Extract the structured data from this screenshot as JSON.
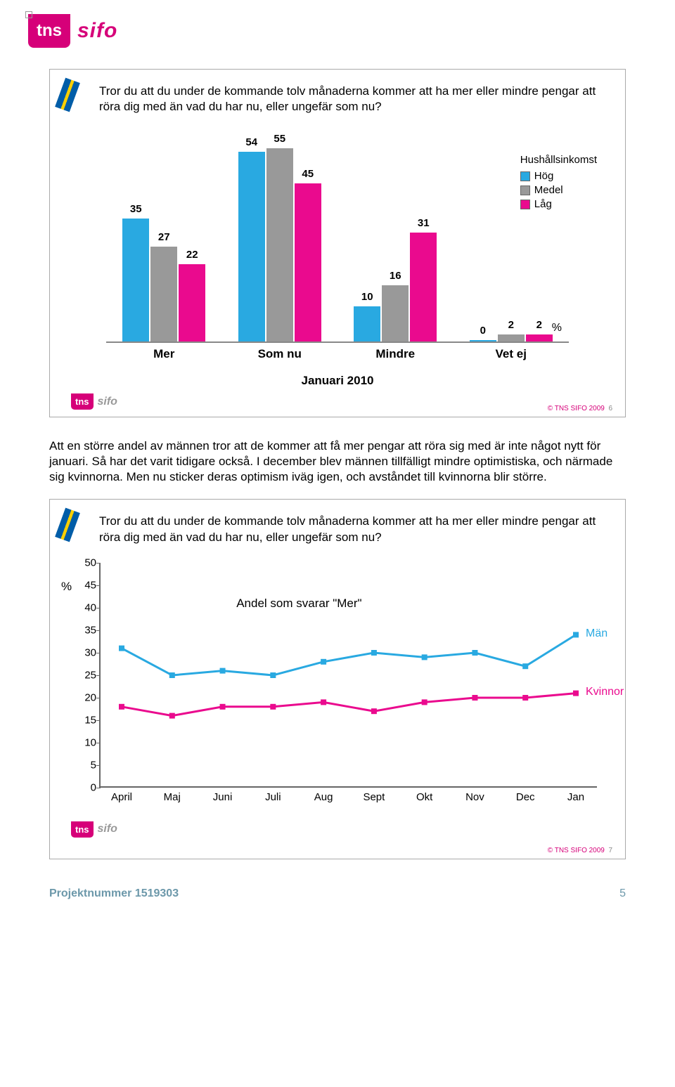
{
  "logo": {
    "tns": "tns",
    "sifo": "sifo"
  },
  "slide1": {
    "question": "Tror du att du under de kommande tolv månaderna kommer att ha mer eller mindre pengar att röra dig med än vad du har nu, eller ungefär som nu?",
    "legend_title": "Hushållsinkomst",
    "legend_items": [
      {
        "label": "Hög",
        "color": "#29a9e1"
      },
      {
        "label": "Medel",
        "color": "#999999"
      },
      {
        "label": "Låg",
        "color": "#ea0a8e"
      }
    ],
    "colors": {
      "hog": "#29a9e1",
      "medel": "#999999",
      "lag": "#ea0a8e"
    },
    "ymax": 60,
    "groups": [
      {
        "label": "Mer",
        "values": [
          35,
          27,
          22
        ]
      },
      {
        "label": "Som nu",
        "values": [
          54,
          55,
          45
        ]
      },
      {
        "label": "Mindre",
        "values": [
          10,
          16,
          31
        ]
      },
      {
        "label": "Vet ej",
        "values": [
          0,
          2,
          2
        ]
      }
    ],
    "unit": "%",
    "subtitle": "Januari 2010",
    "copyright": "© TNS SIFO 2009",
    "slide_num": "6"
  },
  "paragraph": "Att en större andel av männen tror att de kommer att få mer pengar att röra sig med är inte något nytt för januari. Så har det varit tidigare också. I december blev männen tillfälligt mindre optimistiska, och närmade sig kvinnorna. Men nu sticker deras optimism iväg igen, och avståndet till kvinnorna blir större.",
  "slide2": {
    "question": "Tror du att du under de kommande tolv månaderna kommer att ha mer eller mindre pengar att röra dig med än vad du har nu, eller ungefär som nu?",
    "chart_title": "Andel som svarar \"Mer\"",
    "unit": "%",
    "ymax": 50,
    "ytick_step": 5,
    "yticks": [
      0,
      5,
      10,
      15,
      20,
      25,
      30,
      35,
      40,
      45,
      50
    ],
    "xlabels": [
      "April",
      "Maj",
      "Juni",
      "Juli",
      "Aug",
      "Sept",
      "Okt",
      "Nov",
      "Dec",
      "Jan"
    ],
    "series": [
      {
        "name": "Män",
        "color": "#29a9e1",
        "values": [
          31,
          25,
          26,
          25,
          28,
          30,
          29,
          30,
          27,
          34
        ]
      },
      {
        "name": "Kvinnor",
        "color": "#ea0a8e",
        "values": [
          18,
          16,
          18,
          18,
          19,
          17,
          19,
          20,
          20,
          21
        ]
      }
    ],
    "copyright": "© TNS SIFO 2009",
    "slide_num": "7"
  },
  "footer": {
    "project": "Projektnummer 1519303",
    "pagenum": "5"
  }
}
